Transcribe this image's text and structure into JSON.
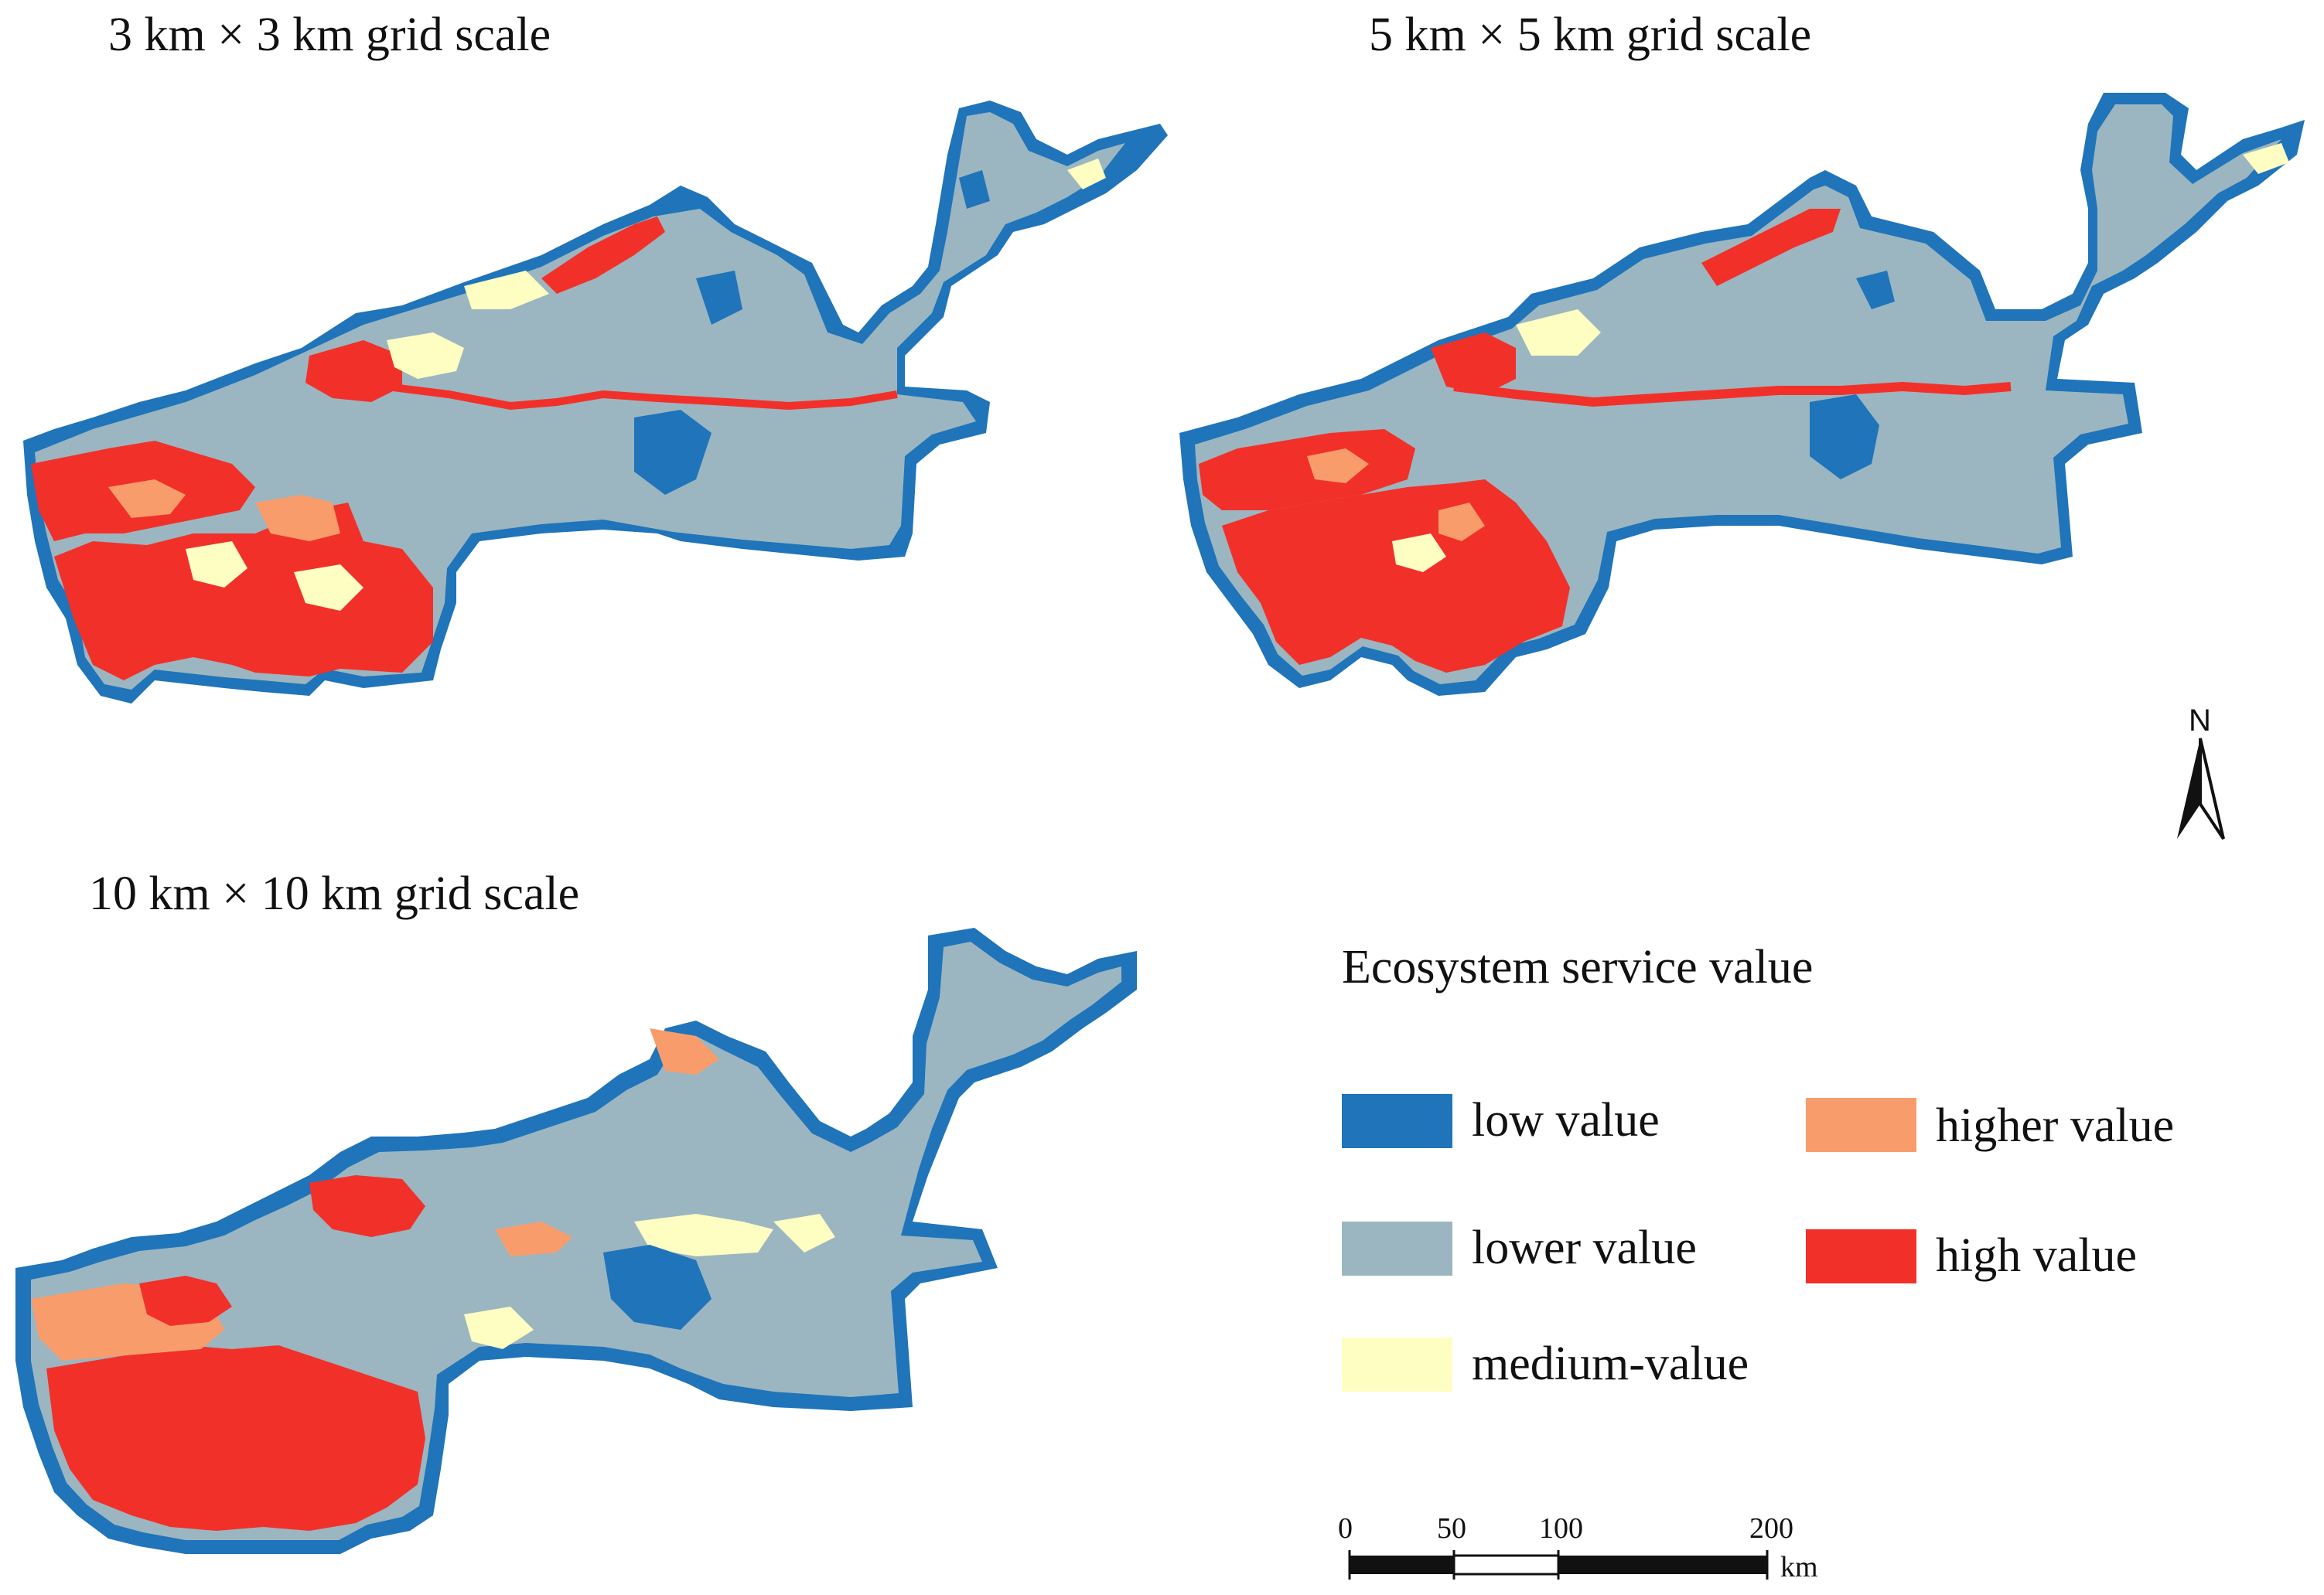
{
  "panels": [
    {
      "title": "3 km × 3 km grid scale"
    },
    {
      "title": "5 km × 5 km grid scale"
    },
    {
      "title": "10 km × 10 km grid scale"
    }
  ],
  "legend": {
    "title": "Ecosystem service value",
    "items": [
      {
        "label": "low value",
        "color": "#1f74ba"
      },
      {
        "label": "lower value",
        "color": "#9bb6c0"
      },
      {
        "label": "medium-value",
        "color": "#fefec2"
      },
      {
        "label": "higher value",
        "color": "#f99c6c"
      },
      {
        "label": "high value",
        "color": "#f2302a"
      }
    ]
  },
  "north_arrow": {
    "label": "N"
  },
  "scale_bar": {
    "ticks": [
      "0",
      "50",
      "100",
      "200"
    ],
    "unit": "km"
  },
  "colors": {
    "low": "#1f74ba",
    "lower": "#9bb6c0",
    "medium": "#fefec2",
    "higher": "#f99c6c",
    "high": "#f2302a"
  }
}
